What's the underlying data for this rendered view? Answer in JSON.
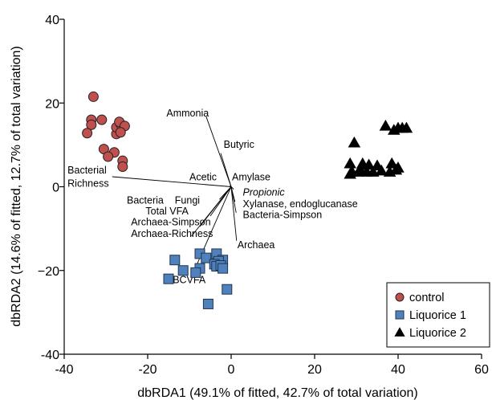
{
  "chart_data": {
    "type": "scatter",
    "xlabel": "dbRDA1 (49.1% of fitted, 42.7% of total variation)",
    "ylabel": "dbRDA2 (14.6% of fitted, 12.7% of total variation)",
    "xlim": [
      -40,
      60
    ],
    "ylim": [
      -40,
      40
    ],
    "x_ticks": [
      -40,
      -20,
      0,
      20,
      40,
      60
    ],
    "y_ticks": [
      -40,
      -20,
      0,
      20,
      40
    ],
    "x_tick_labels": [
      "-40",
      "-20",
      "0",
      "20",
      "40",
      "60"
    ],
    "y_tick_labels": [
      "-40",
      "−20",
      "0",
      "20",
      "40"
    ],
    "grid": false,
    "legend_position": "bottom-right",
    "series": [
      {
        "name": "control",
        "marker": "circle",
        "color": "#c0504d",
        "points": [
          [
            -33.0,
            21.5
          ],
          [
            -33.5,
            16.0
          ],
          [
            -31.0,
            16.0
          ],
          [
            -33.5,
            14.8
          ],
          [
            -34.5,
            12.8
          ],
          [
            -30.5,
            9.0
          ],
          [
            -28.0,
            8.2
          ],
          [
            -29.5,
            7.2
          ],
          [
            -26.0,
            6.2
          ],
          [
            -26.0,
            4.8
          ],
          [
            -27.5,
            12.6
          ],
          [
            -27.5,
            14.2
          ],
          [
            -26.5,
            15.0
          ],
          [
            -26.8,
            15.5
          ],
          [
            -25.5,
            14.5
          ],
          [
            -26.5,
            13.0
          ]
        ]
      },
      {
        "name": "Liquorice 1",
        "marker": "square",
        "color": "#4f81bd",
        "points": [
          [
            -13.5,
            -17.5
          ],
          [
            -7.5,
            -16.0
          ],
          [
            -6.0,
            -17.0
          ],
          [
            -3.5,
            -16.0
          ],
          [
            -2.0,
            -17.5
          ],
          [
            -3.0,
            -17.8
          ],
          [
            -4.0,
            -18.5
          ],
          [
            -3.5,
            -19.0
          ],
          [
            -2.5,
            -18.8
          ],
          [
            -2.0,
            -19.5
          ],
          [
            -7.5,
            -19.5
          ],
          [
            -8.5,
            -20.5
          ],
          [
            -11.5,
            -20.0
          ],
          [
            -15.0,
            -22.0
          ],
          [
            -1.0,
            -24.5
          ],
          [
            -5.5,
            -28.0
          ]
        ]
      },
      {
        "name": "Liquorice 2",
        "marker": "triangle",
        "color": "#000000",
        "points": [
          [
            29.5,
            10.5
          ],
          [
            37.0,
            14.5
          ],
          [
            39.0,
            13.5
          ],
          [
            40.0,
            14.0
          ],
          [
            41.0,
            14.0
          ],
          [
            42.0,
            14.0
          ],
          [
            28.5,
            5.5
          ],
          [
            31.5,
            5.5
          ],
          [
            33.0,
            5.2
          ],
          [
            35.0,
            5.0
          ],
          [
            38.5,
            5.5
          ],
          [
            29.0,
            3.5
          ],
          [
            30.5,
            3.5
          ],
          [
            32.5,
            3.5
          ],
          [
            34.0,
            3.5
          ],
          [
            38.0,
            3.5
          ],
          [
            39.5,
            4.0
          ],
          [
            40.0,
            4.5
          ],
          [
            28.5,
            3.0
          ],
          [
            31.0,
            4.0
          ],
          [
            36.0,
            3.8
          ]
        ]
      }
    ],
    "vectors": [
      {
        "label": "Ammonia",
        "end": [
          -6.0,
          16.8
        ],
        "label_pos": [
          -15.5,
          16.8
        ],
        "label_anchor": "start",
        "italic": false
      },
      {
        "label": "Butyric",
        "end": [
          -2.5,
          8.0
        ],
        "label_pos": [
          -1.8,
          9.3
        ],
        "label_anchor": "start",
        "italic": false
      },
      {
        "label": "Bacterial",
        "end": [
          -28.5,
          2.4
        ],
        "label_pos": [
          -39.2,
          3.2
        ],
        "label_anchor": "start",
        "italic": false
      },
      {
        "label": "Richness",
        "end": null,
        "label_pos": [
          -39.2,
          0.0
        ],
        "label_anchor": "start",
        "italic": false
      },
      {
        "label": "Acetic",
        "end": null,
        "label_pos": [
          -10.0,
          1.5
        ],
        "label_anchor": "start",
        "italic": false
      },
      {
        "label": "Amylase",
        "end": [
          -0.3,
          0.3
        ],
        "label_pos": [
          0.2,
          1.5
        ],
        "label_anchor": "start",
        "italic": false
      },
      {
        "label": "Propionic",
        "end": [
          0.6,
          -0.6
        ],
        "label_pos": [
          2.8,
          -2.1
        ],
        "label_anchor": "start",
        "italic": true
      },
      {
        "label": "Xylanase, endoglucanase",
        "end": [
          0.9,
          -3.6
        ],
        "label_pos": [
          2.8,
          -4.9
        ],
        "label_anchor": "start",
        "italic": false
      },
      {
        "label": "Bacteria-Simpson",
        "end": [
          1.2,
          -6.2
        ],
        "label_pos": [
          2.8,
          -7.5
        ],
        "label_anchor": "start",
        "italic": false
      },
      {
        "label": "Archaea",
        "end": [
          1.3,
          -12.9
        ],
        "label_pos": [
          1.5,
          -14.7
        ],
        "label_anchor": "start",
        "italic": false
      },
      {
        "label": "Bacteria",
        "end": [
          -1.8,
          -2.0
        ],
        "label_pos": [
          -25.0,
          -4.0
        ],
        "label_anchor": "start",
        "italic": false
      },
      {
        "label": "Fungi",
        "end": [
          -2.8,
          -3.0
        ],
        "label_pos": [
          -13.5,
          -4.0
        ],
        "label_anchor": "start",
        "italic": false
      },
      {
        "label": "Total VFA",
        "end": [
          -5.0,
          -7.0
        ],
        "label_pos": [
          -20.5,
          -6.6
        ],
        "label_anchor": "start",
        "italic": false
      },
      {
        "label": "Archaea-Simpson",
        "end": [
          -7.5,
          -9.5
        ],
        "label_pos": [
          -24.0,
          -9.2
        ],
        "label_anchor": "start",
        "italic": false
      },
      {
        "label": "Archaea-Richness",
        "end": [
          -9.5,
          -11.8
        ],
        "label_pos": [
          -24.0,
          -12.0
        ],
        "label_anchor": "start",
        "italic": false
      },
      {
        "label": "BCVFA",
        "end": [
          -9.5,
          -21.5
        ],
        "label_pos": [
          -14.0,
          -23.0
        ],
        "label_anchor": "start",
        "italic": false
      }
    ]
  }
}
